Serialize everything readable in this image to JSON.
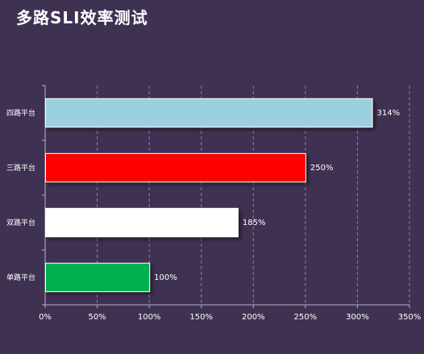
{
  "chart_data": {
    "type": "bar",
    "orientation": "horizontal",
    "title": "多路SLI效率测试",
    "categories": [
      "四路平台",
      "三路平台",
      "双路平台",
      "单路平台"
    ],
    "values": [
      314,
      250,
      185,
      100
    ],
    "data_labels": [
      "314%",
      "250%",
      "185%",
      "100%"
    ],
    "bar_colors": [
      "#9ad0e0",
      "#ff0000",
      "#ffffff",
      "#00b050"
    ],
    "xlim": [
      0,
      350
    ],
    "x_ticks": [
      0,
      50,
      100,
      150,
      200,
      250,
      300,
      350
    ],
    "x_tick_labels": [
      "0%",
      "50%",
      "100%",
      "150%",
      "200%",
      "250%",
      "300%",
      "350%"
    ],
    "grid": "vertical-dashed",
    "legend": "none",
    "background": "#3f3152"
  }
}
